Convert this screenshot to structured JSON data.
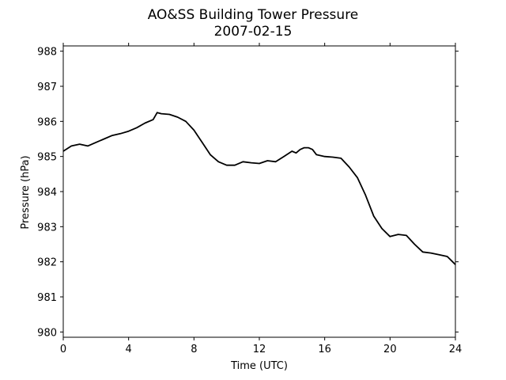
{
  "chart_data": {
    "type": "line",
    "title": "AO&SS Building Tower Pressure",
    "subtitle": "2007-02-15",
    "xlabel": "Time (UTC)",
    "ylabel": "Pressure (hPa)",
    "xlim": [
      0,
      24
    ],
    "ylim": [
      979.85,
      988.15
    ],
    "xticks": [
      0,
      4,
      8,
      12,
      16,
      20,
      24
    ],
    "yticks": [
      980,
      981,
      982,
      983,
      984,
      985,
      986,
      987,
      988
    ],
    "grid": false,
    "legend": "none",
    "series": [
      {
        "color": "#000000",
        "x": [
          0,
          0.5,
          1,
          1.5,
          2,
          2.5,
          3,
          3.5,
          4,
          4.5,
          5,
          5.5,
          5.75,
          6,
          6.5,
          7,
          7.5,
          8,
          8.5,
          9,
          9.5,
          10,
          10.5,
          11,
          11.5,
          12,
          12.5,
          13,
          13.5,
          14,
          14.25,
          14.5,
          14.75,
          15,
          15.25,
          15.5,
          16,
          16.5,
          17,
          17.5,
          18,
          18.5,
          19,
          19.5,
          20,
          20.5,
          21,
          21.5,
          22,
          22.5,
          23,
          23.5,
          24
        ],
        "y": [
          985.15,
          985.3,
          985.35,
          985.3,
          985.4,
          985.5,
          985.6,
          985.65,
          985.72,
          985.82,
          985.95,
          986.05,
          986.25,
          986.22,
          986.2,
          986.12,
          986.0,
          985.75,
          985.4,
          985.05,
          984.85,
          984.75,
          984.75,
          984.85,
          984.82,
          984.8,
          984.88,
          984.85,
          985.0,
          985.15,
          985.1,
          985.2,
          985.25,
          985.25,
          985.2,
          985.05,
          985.0,
          984.98,
          984.95,
          984.7,
          984.4,
          983.9,
          983.3,
          982.95,
          982.72,
          982.78,
          982.75,
          982.5,
          982.28,
          982.25,
          982.2,
          982.15,
          981.92
        ]
      }
    ]
  }
}
